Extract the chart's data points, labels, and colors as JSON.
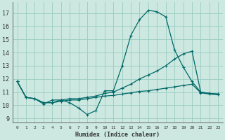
{
  "title": "",
  "xlabel": "Humidex (Indice chaleur)",
  "background_color": "#cce8e0",
  "grid_color": "#99ccc2",
  "line_color": "#006868",
  "x_ticks": [
    0,
    1,
    2,
    3,
    4,
    5,
    6,
    7,
    8,
    9,
    10,
    11,
    12,
    13,
    14,
    15,
    16,
    17,
    18,
    19,
    20,
    21,
    22,
    23
  ],
  "y_ticks": [
    9,
    10,
    11,
    12,
    13,
    14,
    15,
    16,
    17
  ],
  "xlim": [
    -0.5,
    23.5
  ],
  "ylim": [
    8.7,
    17.8
  ],
  "line1_x": [
    0,
    1,
    2,
    3,
    4,
    5,
    6,
    7,
    8,
    9,
    10,
    11,
    12,
    13,
    14,
    15,
    16,
    17,
    18,
    19,
    20,
    21,
    22,
    23
  ],
  "line1_y": [
    11.8,
    10.6,
    10.5,
    10.1,
    10.4,
    10.4,
    10.2,
    9.8,
    9.3,
    9.6,
    11.1,
    11.1,
    13.0,
    15.3,
    16.5,
    17.2,
    17.1,
    16.7,
    14.2,
    12.9,
    11.8,
    11.0,
    10.9,
    10.85
  ],
  "line2_x": [
    0,
    1,
    2,
    3,
    4,
    5,
    6,
    7,
    8,
    9,
    10,
    11,
    12,
    13,
    14,
    15,
    16,
    17,
    18,
    19,
    20,
    21,
    22,
    23
  ],
  "line2_y": [
    11.8,
    10.6,
    10.5,
    10.2,
    10.2,
    10.4,
    10.5,
    10.5,
    10.6,
    10.7,
    10.9,
    11.0,
    11.3,
    11.6,
    12.0,
    12.3,
    12.6,
    13.0,
    13.5,
    13.9,
    14.1,
    11.0,
    10.9,
    10.85
  ],
  "line3_x": [
    0,
    1,
    2,
    3,
    4,
    5,
    6,
    7,
    8,
    9,
    10,
    11,
    12,
    13,
    14,
    15,
    16,
    17,
    18,
    19,
    20,
    21,
    22,
    23
  ],
  "line3_y": [
    11.8,
    10.6,
    10.5,
    10.2,
    10.2,
    10.3,
    10.4,
    10.4,
    10.5,
    10.6,
    10.7,
    10.75,
    10.85,
    10.95,
    11.05,
    11.1,
    11.2,
    11.3,
    11.4,
    11.5,
    11.6,
    10.95,
    10.85,
    10.8
  ]
}
